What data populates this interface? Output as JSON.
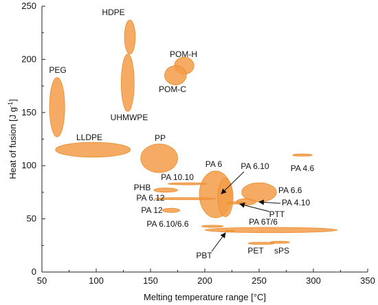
{
  "chart_data": {
    "type": "scatter",
    "xlabel": "Melting temperature range [°C]",
    "ylabel_main": "Heat of fusion  [J g",
    "ylabel_sup": "-1",
    "ylabel_end": "]",
    "xlim": [
      50,
      350
    ],
    "ylim": [
      0,
      250
    ],
    "xticks": [
      50,
      100,
      150,
      200,
      250,
      300,
      350
    ],
    "yticks": [
      0,
      50,
      100,
      150,
      200,
      250
    ],
    "fill_color": "#f39c48",
    "stroke_color": "#e88a2a",
    "series": [
      {
        "label": "HDPE",
        "x": 131,
        "y": 221,
        "x_range": [
          126,
          136
        ],
        "y_range": [
          205,
          237
        ]
      },
      {
        "label": "UHMWPE",
        "x": 129,
        "y": 178,
        "x_range": [
          123,
          135
        ],
        "y_range": [
          151,
          205
        ]
      },
      {
        "label": "POM-H",
        "x": 181,
        "y": 194,
        "x_range": [
          172,
          190
        ],
        "y_range": [
          186,
          202
        ]
      },
      {
        "label": "POM-C",
        "x": 173,
        "y": 185,
        "x_range": [
          163,
          183
        ],
        "y_range": [
          176,
          194
        ]
      },
      {
        "label": "PEG",
        "x": 64,
        "y": 155,
        "x_range": [
          57,
          71
        ],
        "y_range": [
          127,
          183
        ]
      },
      {
        "label": "LLDPE",
        "x": 97,
        "y": 115,
        "x_range": [
          62,
          131
        ],
        "y_range": [
          108,
          122
        ]
      },
      {
        "label": "PP",
        "x": 158,
        "y": 107,
        "x_range": [
          141,
          175
        ],
        "y_range": [
          94,
          121
        ]
      },
      {
        "label": "PA 4.6",
        "x": 290,
        "y": 110,
        "x_range": [
          281,
          299
        ],
        "y_range": [
          109,
          111
        ]
      },
      {
        "label": "PA 6",
        "x": 210,
        "y": 73,
        "x_range": [
          195,
          225
        ],
        "y_range": [
          51,
          95
        ]
      },
      {
        "label": "PA 6.10",
        "x": 219,
        "y": 70,
        "x_range": [
          212,
          226
        ],
        "y_range": [
          52,
          88
        ]
      },
      {
        "label": "PA 10.10",
        "x": 184,
        "y": 83,
        "x_range": [
          166,
          202
        ],
        "y_range": [
          82,
          84
        ]
      },
      {
        "label": "PHB",
        "x": 164,
        "y": 77,
        "x_range": [
          153,
          175
        ],
        "y_range": [
          75,
          79
        ]
      },
      {
        "label": "PA 6.12",
        "x": 182,
        "y": 69,
        "x_range": [
          154,
          210
        ],
        "y_range": [
          68,
          70
        ]
      },
      {
        "label": "PA 12",
        "x": 169,
        "y": 58,
        "x_range": [
          161,
          177
        ],
        "y_range": [
          56,
          60
        ]
      },
      {
        "label": "PA 6.6",
        "x": 250,
        "y": 75,
        "x_range": [
          234,
          266
        ],
        "y_range": [
          66,
          84
        ]
      },
      {
        "label": "PA 4.10",
        "x": 238,
        "y": 66,
        "x_range": [
          229,
          247
        ],
        "y_range": [
          63,
          69
        ]
      },
      {
        "label": "PTT",
        "x": 229,
        "y": 65,
        "x_range": [
          220,
          238
        ],
        "y_range": [
          64,
          66
        ]
      },
      {
        "label": "PA 6.10/6.6",
        "x": 207,
        "y": 43,
        "x_range": [
          197,
          217
        ],
        "y_range": [
          42,
          44
        ]
      },
      {
        "label": "PA 6T/6",
        "x": 261,
        "y": 39.5,
        "x_range": [
          200,
          322
        ],
        "y_range": [
          37,
          42
        ]
      },
      {
        "label": "PBT",
        "x": 223,
        "y": 38.5,
        "x_range": [
          219,
          227
        ],
        "y_range": [
          38,
          39
        ]
      },
      {
        "label": "PET",
        "x": 252,
        "y": 27,
        "x_range": [
          240,
          264
        ],
        "y_range": [
          26,
          28
        ]
      },
      {
        "label": "sPS",
        "x": 269,
        "y": 28,
        "x_range": [
          260,
          278
        ],
        "y_range": [
          27,
          29
        ]
      }
    ]
  }
}
